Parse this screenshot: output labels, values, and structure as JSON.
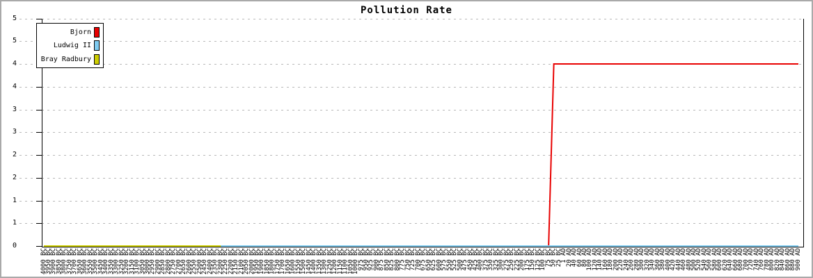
{
  "title": "Pollution Rate",
  "legend": {
    "items": [
      {
        "label": "Bjorn",
        "color": "#e80000"
      },
      {
        "label": "Ludwig II",
        "color": "#7fcbf0"
      },
      {
        "label": "Bray Radbury",
        "color": "#cdcd00"
      }
    ]
  },
  "chart_data": {
    "type": "line",
    "title": "Pollution Rate",
    "xlabel": "",
    "ylabel": "",
    "ylim": [
      0,
      5
    ],
    "grid": "horizontal-dashed",
    "legend_position": "top-left",
    "colors": {
      "gridline": "#b8b8b8",
      "axis": "#000000",
      "frame": "#a9a9a9"
    },
    "y_ticks": [
      {
        "value": 5,
        "label": "5"
      },
      {
        "value": 4.5,
        "label": "5"
      },
      {
        "value": 4,
        "label": "4"
      },
      {
        "value": 3.5,
        "label": "4"
      },
      {
        "value": 3,
        "label": "3"
      },
      {
        "value": 2.5,
        "label": "3"
      },
      {
        "value": 2,
        "label": "2"
      },
      {
        "value": 1.5,
        "label": "2"
      },
      {
        "value": 1,
        "label": "1"
      },
      {
        "value": 0.5,
        "label": "1"
      },
      {
        "value": 0,
        "label": "0"
      }
    ],
    "x_labels": [
      "4000 BC",
      "3950 BC",
      "3900 BC",
      "3850 BC",
      "3800 BC",
      "3750 BC",
      "3700 BC",
      "3650 BC",
      "3600 BC",
      "3550 BC",
      "3500 BC",
      "3450 BC",
      "3400 BC",
      "3350 BC",
      "3300 BC",
      "3250 BC",
      "3200 BC",
      "3150 BC",
      "3100 BC",
      "3050 BC",
      "3000 BC",
      "2950 BC",
      "2900 BC",
      "2850 BC",
      "2800 BC",
      "2750 BC",
      "2700 BC",
      "2650 BC",
      "2600 BC",
      "2550 BC",
      "2500 BC",
      "2450 BC",
      "2400 BC",
      "2350 BC",
      "2300 BC",
      "2250 BC",
      "2200 BC",
      "2150 BC",
      "2100 BC",
      "2050 BC",
      "2000 BC",
      "1950 BC",
      "1900 BC",
      "1850 BC",
      "1800 BC",
      "1750 BC",
      "1700 BC",
      "1650 BC",
      "1600 BC",
      "1550 BC",
      "1500 BC",
      "1450 BC",
      "1400 BC",
      "1350 BC",
      "1300 BC",
      "1250 BC",
      "1200 BC",
      "1150 BC",
      "1100 BC",
      "1050 BC",
      "1000 BC",
      "975 BC",
      "950 BC",
      "925 BC",
      "900 BC",
      "875 BC",
      "850 BC",
      "825 BC",
      "800 BC",
      "775 BC",
      "750 BC",
      "725 BC",
      "700 BC",
      "675 BC",
      "650 BC",
      "625 BC",
      "600 BC",
      "575 BC",
      "550 BC",
      "525 BC",
      "500 BC",
      "475 BC",
      "450 BC",
      "425 BC",
      "400 BC",
      "375 BC",
      "350 BC",
      "325 BC",
      "300 BC",
      "275 BC",
      "250 BC",
      "225 BC",
      "200 BC",
      "175 BC",
      "150 BC",
      "125 BC",
      "100 BC",
      "75 BC",
      "50 BC",
      "25 BC",
      "1 AD",
      "20 AD",
      "40 AD",
      "60 AD",
      "80 AD",
      "100 AD",
      "120 AD",
      "140 AD",
      "160 AD",
      "180 AD",
      "200 AD",
      "220 AD",
      "240 AD",
      "260 AD",
      "280 AD",
      "300 AD",
      "320 AD",
      "340 AD",
      "360 AD",
      "380 AD",
      "400 AD",
      "420 AD",
      "440 AD",
      "460 AD",
      "480 AD",
      "500 AD",
      "520 AD",
      "540 AD",
      "560 AD",
      "580 AD",
      "600 AD",
      "620 AD",
      "640 AD",
      "660 AD",
      "680 AD",
      "700 AD",
      "720 AD",
      "740 AD",
      "760 AD",
      "780 AD",
      "800 AD",
      "820 AD",
      "840 AD",
      "860 AD",
      "880 AD",
      "900 AD"
    ],
    "series": [
      {
        "name": "Bjorn",
        "color": "#e80000",
        "points": [
          [
            "4000 BC",
            0
          ],
          [
            "75 BC",
            0
          ],
          [
            "50 BC",
            4
          ],
          [
            "900 AD",
            4
          ]
        ]
      },
      {
        "name": "Ludwig II",
        "color": "#7fcbf0",
        "points": [
          [
            "4000 BC",
            0
          ],
          [
            "900 AD",
            0
          ]
        ]
      },
      {
        "name": "Bray Radbury",
        "color": "#cdcd00",
        "points": [
          [
            "4000 BC",
            0
          ],
          [
            "2300 BC",
            0
          ]
        ]
      }
    ]
  }
}
